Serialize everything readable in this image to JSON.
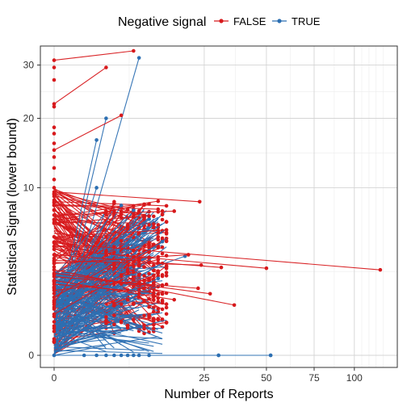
{
  "chart_data": {
    "type": "line",
    "xlabel": "Number of Reports",
    "ylabel": "Statistical Signal (lower bound)",
    "legend": {
      "title": "Negative signal",
      "placement": "top"
    },
    "x_scale": "sqrt",
    "y_scale": "sqrt",
    "xlim": [
      0,
      121
    ],
    "ylim": [
      0,
      33
    ],
    "x_ticks": [
      0,
      25,
      50,
      75,
      100
    ],
    "x_tick_labels": [
      "0",
      "25",
      "50",
      "75",
      "100"
    ],
    "y_ticks": [
      0,
      10,
      20,
      30
    ],
    "y_tick_labels": [
      "0",
      "10",
      "20",
      "30"
    ],
    "grid": true,
    "series": [
      {
        "name": "FALSE",
        "color": "#d7191c",
        "segments": [
          [
            [
              0,
              31
            ],
            [
              7,
              33
            ]
          ],
          [
            [
              0,
              22.5
            ],
            [
              3,
              29.5
            ]
          ],
          [
            [
              0,
              15
            ],
            [
              5,
              20.5
            ]
          ],
          [
            [
              0,
              9.5
            ],
            [
              23.5,
              8.4
            ]
          ],
          [
            [
              0,
              8
            ],
            [
              12,
              7.6
            ]
          ],
          [
            [
              0,
              7
            ],
            [
              16,
              7.4
            ]
          ],
          [
            [
              0,
              6.2
            ],
            [
              10,
              6.9
            ]
          ],
          [
            [
              0,
              5
            ],
            [
              14,
              5.6
            ]
          ],
          [
            [
              0,
              4.5
            ],
            [
              118,
              2.6
            ]
          ],
          [
            [
              0,
              4
            ],
            [
              50,
              2.7
            ]
          ],
          [
            [
              0,
              3.6
            ],
            [
              31,
              2.75
            ]
          ],
          [
            [
              0,
              3.2
            ],
            [
              24,
              2.9
            ]
          ],
          [
            [
              0,
              3
            ],
            [
              20,
              3.6
            ]
          ],
          [
            [
              0,
              2.6
            ],
            [
              36,
              0.9
            ]
          ],
          [
            [
              0,
              2.4
            ],
            [
              27,
              1.35
            ]
          ],
          [
            [
              0,
              2.2
            ],
            [
              23,
              1.6
            ]
          ],
          [
            [
              0,
              2
            ],
            [
              16,
              1.1
            ]
          ],
          [
            [
              0,
              1.8
            ],
            [
              11,
              1.4
            ]
          ],
          [
            [
              0,
              1.5
            ],
            [
              9,
              2
            ]
          ],
          [
            [
              0,
              1.2
            ],
            [
              4,
              3
            ]
          ],
          [
            [
              0,
              1
            ],
            [
              2,
              4.5
            ]
          ],
          [
            [
              0,
              0.6
            ],
            [
              6,
              2.5
            ]
          ]
        ]
      },
      {
        "name": "TRUE",
        "color": "#2c6fb2",
        "segments": [
          [
            [
              0,
              0
            ],
            [
              8,
              31.5
            ]
          ],
          [
            [
              0,
              0.1
            ],
            [
              3,
              20
            ]
          ],
          [
            [
              0,
              0.2
            ],
            [
              2,
              16.5
            ]
          ],
          [
            [
              0,
              0.3
            ],
            [
              2,
              10
            ]
          ],
          [
            [
              0,
              0.4
            ],
            [
              5,
              8
            ]
          ],
          [
            [
              0,
              0.5
            ],
            [
              7,
              7.5
            ]
          ],
          [
            [
              0,
              0.5
            ],
            [
              10,
              6.6
            ]
          ],
          [
            [
              0,
              0.6
            ],
            [
              9,
              5.5
            ]
          ],
          [
            [
              0,
              0.8
            ],
            [
              13,
              4.6
            ]
          ],
          [
            [
              0,
              1
            ],
            [
              19,
              3.5
            ]
          ],
          [
            [
              0,
              0
            ],
            [
              30,
              0
            ]
          ],
          [
            [
              0,
              0
            ],
            [
              52,
              0
            ]
          ],
          [
            [
              0,
              0.3
            ],
            [
              12,
              2.1
            ]
          ],
          [
            [
              0,
              0.2
            ],
            [
              6,
              3.3
            ]
          ]
        ]
      }
    ],
    "isolated_points": {
      "FALSE_at_zero": [
        29.5,
        27,
        22,
        18.5,
        17.5,
        16,
        14,
        12.5,
        11,
        10,
        9
      ],
      "FALSE_columns_x": [
        3,
        4,
        5,
        6,
        7,
        8,
        9,
        10,
        11,
        12,
        13,
        14
      ],
      "TRUE_baseline_x": [
        0,
        1,
        2,
        3,
        4,
        5,
        6,
        7,
        8,
        10,
        30,
        52
      ]
    }
  }
}
